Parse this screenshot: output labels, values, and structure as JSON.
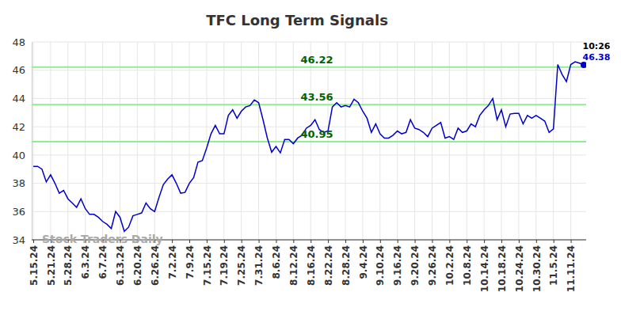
{
  "chart_data": {
    "type": "line",
    "title": "TFC Long Term Signals",
    "categories": [
      "5.15.24",
      null,
      null,
      null,
      "5.21.24",
      null,
      null,
      null,
      "5.28.24",
      null,
      null,
      null,
      "6.3.24",
      null,
      null,
      null,
      "6.7.24",
      null,
      null,
      null,
      "6.13.24",
      null,
      null,
      null,
      "6.20.24",
      null,
      null,
      null,
      "6.26.24",
      null,
      null,
      null,
      "7.2.24",
      null,
      null,
      null,
      "7.9.24",
      null,
      null,
      null,
      "7.15.24",
      null,
      null,
      null,
      "7.19.24",
      null,
      null,
      null,
      "7.25.24",
      null,
      null,
      null,
      "7.31.24",
      null,
      null,
      null,
      "8.6.24",
      null,
      null,
      null,
      "8.12.24",
      null,
      null,
      null,
      "8.16.24",
      null,
      null,
      null,
      "8.22.24",
      null,
      null,
      null,
      "8.28.24",
      null,
      null,
      null,
      "9.4.24",
      null,
      null,
      null,
      "9.10.24",
      null,
      null,
      null,
      "9.16.24",
      null,
      null,
      null,
      "9.20.24",
      null,
      null,
      null,
      "9.26.24",
      null,
      null,
      null,
      "10.2.24",
      null,
      null,
      null,
      "10.8.24",
      null,
      null,
      null,
      "10.14.24",
      null,
      null,
      null,
      "10.18.24",
      null,
      null,
      null,
      "10.24.24",
      null,
      null,
      null,
      "10.30.24",
      null,
      null,
      null,
      "11.5.24",
      null,
      null,
      null,
      "11.11.24",
      null,
      null,
      null
    ],
    "values": [
      39.2,
      39.2,
      39.0,
      38.1,
      38.6,
      38.0,
      37.3,
      37.5,
      36.9,
      36.6,
      36.3,
      36.9,
      36.2,
      35.8,
      35.8,
      35.6,
      35.3,
      35.1,
      34.8,
      36.0,
      35.6,
      34.6,
      34.9,
      35.7,
      35.8,
      35.9,
      36.6,
      36.2,
      36.0,
      37.0,
      37.9,
      38.3,
      38.6,
      38.0,
      37.3,
      37.35,
      38.0,
      38.4,
      39.5,
      39.6,
      40.5,
      41.5,
      42.1,
      41.5,
      41.5,
      42.8,
      43.2,
      42.6,
      43.1,
      43.4,
      43.5,
      43.9,
      43.7,
      42.5,
      41.2,
      40.2,
      40.6,
      40.15,
      41.1,
      41.1,
      40.8,
      41.2,
      41.4,
      41.9,
      42.1,
      42.5,
      41.8,
      41.6,
      41.7,
      43.4,
      43.7,
      43.4,
      43.5,
      43.4,
      43.95,
      43.7,
      43.1,
      42.6,
      41.6,
      42.2,
      41.5,
      41.2,
      41.2,
      41.4,
      41.7,
      41.5,
      41.6,
      42.5,
      41.9,
      41.8,
      41.6,
      41.3,
      41.9,
      42.1,
      42.3,
      41.2,
      41.3,
      41.1,
      41.9,
      41.6,
      41.7,
      42.2,
      42.0,
      42.8,
      43.2,
      43.5,
      44.0,
      42.5,
      43.2,
      42.0,
      42.9,
      42.95,
      42.95,
      42.2,
      42.8,
      42.6,
      42.8,
      42.6,
      42.4,
      41.6,
      41.85,
      46.4,
      45.7,
      45.2,
      46.4,
      46.6,
      46.5,
      46.38
    ],
    "color": "#0000cc",
    "levels": [
      46.22,
      43.56,
      40.95
    ],
    "last_label": "10:26",
    "watermark": "Stock Traders Daily",
    "ylim": [
      34,
      48
    ],
    "yticks": [
      34,
      36,
      38,
      40,
      42,
      44,
      46,
      48
    ],
    "grid": true
  }
}
